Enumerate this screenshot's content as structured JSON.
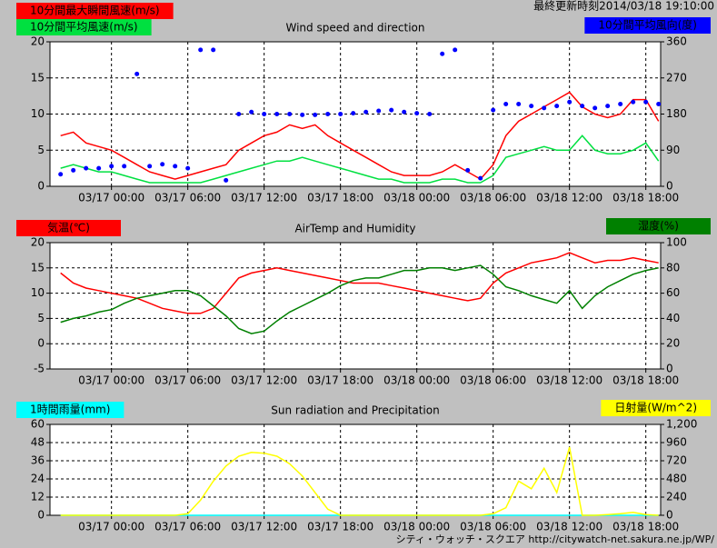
{
  "header": {
    "updated": "最終更新時刻2014/03/18 19:10:00"
  },
  "footer": "シティ・ウォッチ・スクエア http://citywatch-net.sakura.ne.jp/WP/",
  "chart_data": [
    {
      "type": "line",
      "title": "Wind speed and direction",
      "xlim": [
        "03/16 19:10",
        "03/18 19:10"
      ],
      "xticks": [
        "03/17 00:00",
        "03/17 06:00",
        "03/17 12:00",
        "03/17 18:00",
        "03/18 00:00",
        "03/18 06:00",
        "03/18 12:00",
        "03/18 18:00"
      ],
      "ylim": [
        0,
        20
      ],
      "yticks": [
        0,
        5,
        10,
        15,
        20
      ],
      "y2lim": [
        0,
        360
      ],
      "y2ticks": [
        0,
        90,
        180,
        270,
        360
      ],
      "grid": true,
      "x": [
        "03/16 20:00",
        "03/16 21:00",
        "03/16 22:00",
        "03/16 23:00",
        "03/17 00:00",
        "03/17 01:00",
        "03/17 02:00",
        "03/17 03:00",
        "03/17 04:00",
        "03/17 05:00",
        "03/17 06:00",
        "03/17 07:00",
        "03/17 08:00",
        "03/17 09:00",
        "03/17 10:00",
        "03/17 11:00",
        "03/17 12:00",
        "03/17 13:00",
        "03/17 14:00",
        "03/17 15:00",
        "03/17 16:00",
        "03/17 17:00",
        "03/17 18:00",
        "03/17 19:00",
        "03/17 20:00",
        "03/17 21:00",
        "03/17 22:00",
        "03/17 23:00",
        "03/18 00:00",
        "03/18 01:00",
        "03/18 02:00",
        "03/18 03:00",
        "03/18 04:00",
        "03/18 05:00",
        "03/18 06:00",
        "03/18 07:00",
        "03/18 08:00",
        "03/18 09:00",
        "03/18 10:00",
        "03/18 11:00",
        "03/18 12:00",
        "03/18 13:00",
        "03/18 14:00",
        "03/18 15:00",
        "03/18 16:00",
        "03/18 17:00",
        "03/18 18:00",
        "03/18 19:00"
      ],
      "series": [
        {
          "name": "10分間最大瞬間風速(m/s)",
          "color": "#ff0000",
          "values": [
            7,
            7.5,
            6,
            5.5,
            5,
            4,
            3,
            2,
            1.5,
            1,
            1.5,
            2,
            2.5,
            3,
            5,
            6,
            7,
            7.5,
            8.5,
            8,
            8.5,
            7,
            6,
            5,
            4,
            3,
            2,
            1.5,
            1.5,
            1.5,
            2,
            3,
            2,
            1,
            3,
            7,
            9,
            10,
            11,
            12,
            13,
            11,
            10,
            9.5,
            10,
            12,
            12,
            9
          ]
        },
        {
          "name": "10分間平均風速(m/s)",
          "color": "#00e040",
          "values": [
            2.5,
            3,
            2.5,
            2,
            2,
            1.5,
            1,
            0.5,
            0.5,
            0.5,
            0.5,
            0.5,
            1,
            1.5,
            2,
            2.5,
            3,
            3.5,
            3.5,
            4,
            3.5,
            3,
            2.5,
            2,
            1.5,
            1,
            1,
            0.5,
            0.5,
            0.5,
            1,
            1,
            0.5,
            0.5,
            1.5,
            4,
            4.5,
            5,
            5.5,
            5,
            5,
            7,
            5,
            4.5,
            4.5,
            5,
            6,
            3.5
          ]
        },
        {
          "name": "10分間平均風向(度)",
          "color": "#0000ff",
          "axis": "y2",
          "style": "dots",
          "values": [
            30,
            40,
            45,
            45,
            50,
            50,
            280,
            50,
            55,
            50,
            45,
            340,
            340,
            15,
            180,
            185,
            180,
            180,
            180,
            178,
            178,
            180,
            180,
            182,
            185,
            188,
            190,
            185,
            182,
            180,
            330,
            340,
            40,
            20,
            190,
            205,
            205,
            200,
            195,
            200,
            210,
            200,
            195,
            200,
            205,
            210,
            210,
            205
          ]
        }
      ]
    },
    {
      "type": "line",
      "title": "AirTemp and Humidity",
      "xlim": [
        "03/16 19:10",
        "03/18 19:10"
      ],
      "xticks": [
        "03/17 00:00",
        "03/17 06:00",
        "03/17 12:00",
        "03/17 18:00",
        "03/18 00:00",
        "03/18 06:00",
        "03/18 12:00",
        "03/18 18:00"
      ],
      "ylim": [
        -5,
        20
      ],
      "yticks": [
        -5,
        0,
        5,
        10,
        15,
        20
      ],
      "y2lim": [
        0,
        100
      ],
      "y2ticks": [
        0,
        20,
        40,
        60,
        80,
        100
      ],
      "grid": true,
      "x": [
        "03/16 20:00",
        "03/16 21:00",
        "03/16 22:00",
        "03/16 23:00",
        "03/17 00:00",
        "03/17 01:00",
        "03/17 02:00",
        "03/17 03:00",
        "03/17 04:00",
        "03/17 05:00",
        "03/17 06:00",
        "03/17 07:00",
        "03/17 08:00",
        "03/17 09:00",
        "03/17 10:00",
        "03/17 11:00",
        "03/17 12:00",
        "03/17 13:00",
        "03/17 14:00",
        "03/17 15:00",
        "03/17 16:00",
        "03/17 17:00",
        "03/17 18:00",
        "03/17 19:00",
        "03/17 20:00",
        "03/17 21:00",
        "03/17 22:00",
        "03/17 23:00",
        "03/18 00:00",
        "03/18 01:00",
        "03/18 02:00",
        "03/18 03:00",
        "03/18 04:00",
        "03/18 05:00",
        "03/18 06:00",
        "03/18 07:00",
        "03/18 08:00",
        "03/18 09:00",
        "03/18 10:00",
        "03/18 11:00",
        "03/18 12:00",
        "03/18 13:00",
        "03/18 14:00",
        "03/18 15:00",
        "03/18 16:00",
        "03/18 17:00",
        "03/18 18:00",
        "03/18 19:00"
      ],
      "series": [
        {
          "name": "気温(℃)",
          "color": "#ff0000",
          "values": [
            14,
            12,
            11,
            10.5,
            10,
            9.5,
            9,
            8,
            7,
            6.5,
            6,
            6,
            7,
            10,
            13,
            14,
            14.5,
            15,
            14.5,
            14,
            13.5,
            13,
            12.5,
            12,
            12,
            12,
            11.5,
            11,
            10.5,
            10,
            9.5,
            9,
            8.5,
            9,
            12,
            14,
            15,
            16,
            16.5,
            17,
            18,
            17,
            16,
            16.5,
            16.5,
            17,
            16.5,
            16
          ]
        },
        {
          "name": "湿度(%)",
          "color": "#008000",
          "axis": "y2",
          "values": [
            37,
            40,
            42,
            45,
            47,
            52,
            56,
            58,
            60,
            62,
            62,
            58,
            50,
            42,
            32,
            28,
            30,
            38,
            45,
            50,
            55,
            60,
            66,
            70,
            72,
            72,
            75,
            78,
            78,
            80,
            80,
            78,
            80,
            82,
            75,
            65,
            62,
            58,
            55,
            52,
            62,
            48,
            58,
            65,
            70,
            75,
            78,
            80
          ]
        }
      ]
    },
    {
      "type": "line",
      "title": "Sun radiation and Precipitation",
      "xlim": [
        "03/16 19:10",
        "03/18 19:10"
      ],
      "xticks": [
        "03/17 00:00",
        "03/17 06:00",
        "03/17 12:00",
        "03/17 18:00",
        "03/18 00:00",
        "03/18 06:00",
        "03/18 12:00",
        "03/18 18:00"
      ],
      "ylim": [
        0,
        60
      ],
      "yticks": [
        0,
        12,
        24,
        36,
        48,
        60
      ],
      "y2lim": [
        0,
        1200
      ],
      "y2ticks": [
        0,
        240,
        480,
        720,
        960,
        {
          "value": 1200,
          "label": "1,200"
        }
      ],
      "grid": true,
      "x": [
        "03/16 20:00",
        "03/16 21:00",
        "03/16 22:00",
        "03/16 23:00",
        "03/17 00:00",
        "03/17 01:00",
        "03/17 02:00",
        "03/17 03:00",
        "03/17 04:00",
        "03/17 05:00",
        "03/17 06:00",
        "03/17 07:00",
        "03/17 08:00",
        "03/17 09:00",
        "03/17 10:00",
        "03/17 11:00",
        "03/17 12:00",
        "03/17 13:00",
        "03/17 14:00",
        "03/17 15:00",
        "03/17 16:00",
        "03/17 17:00",
        "03/17 18:00",
        "03/17 19:00",
        "03/17 20:00",
        "03/17 21:00",
        "03/17 22:00",
        "03/17 23:00",
        "03/18 00:00",
        "03/18 01:00",
        "03/18 02:00",
        "03/18 03:00",
        "03/18 04:00",
        "03/18 05:00",
        "03/18 06:00",
        "03/18 07:00",
        "03/18 08:00",
        "03/18 09:00",
        "03/18 10:00",
        "03/18 11:00",
        "03/18 12:00",
        "03/18 13:00",
        "03/18 14:00",
        "03/18 15:00",
        "03/18 16:00",
        "03/18 17:00",
        "03/18 18:00",
        "03/18 19:00"
      ],
      "series": [
        {
          "name": "1時間雨量(mm)",
          "color": "#00ffff",
          "values": [
            0,
            0,
            0,
            0,
            0,
            0,
            0,
            0,
            0,
            0,
            0,
            0,
            0,
            0,
            0,
            0,
            0,
            0,
            0,
            0,
            0,
            0,
            0,
            0,
            0,
            0,
            0,
            0,
            0,
            0,
            0,
            0,
            0,
            0,
            0,
            0,
            0,
            0,
            0,
            0,
            0,
            0,
            0,
            0,
            0,
            0,
            0,
            0
          ]
        },
        {
          "name": "日射量(W/m^2)",
          "color": "#ffff00",
          "axis": "y2",
          "values": [
            0,
            0,
            0,
            0,
            0,
            0,
            0,
            0,
            0,
            0,
            20,
            200,
            450,
            650,
            780,
            830,
            820,
            780,
            680,
            520,
            300,
            80,
            0,
            0,
            0,
            0,
            0,
            0,
            0,
            0,
            0,
            0,
            0,
            0,
            20,
            100,
            450,
            350,
            620,
            300,
            900,
            0,
            0,
            10,
            20,
            40,
            10,
            0
          ]
        }
      ]
    }
  ]
}
